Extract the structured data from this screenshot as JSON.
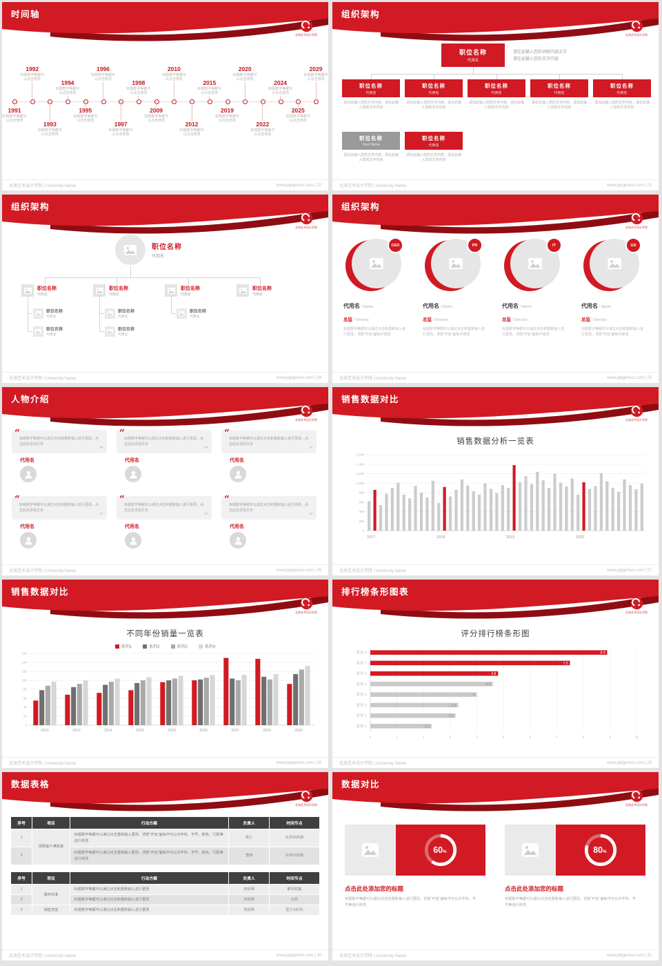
{
  "theme": {
    "red": "#d11a23",
    "dark_red": "#8f0d12"
  },
  "footer": {
    "left": "北海艺术设计学院 | University Name",
    "site": "www.pptgenius.com"
  },
  "logo": {
    "caption": "北海艺术设计学院"
  },
  "slides": {
    "timeline": {
      "title": "时间轴",
      "page": "22",
      "caption": [
        "标题数字等都可",
        "以点击修改"
      ],
      "top_years": [
        "1992",
        "1994",
        "1996",
        "1998",
        "2010",
        "2015",
        "2020",
        "2024",
        "2029"
      ],
      "bottom_years": [
        "1991",
        "1993",
        "1995",
        "1997",
        "2009",
        "2012",
        "2019",
        "2022",
        "2025"
      ]
    },
    "org_boxes": {
      "title": "组织架构",
      "page": "23",
      "root": {
        "name": "职位名称",
        "sub": "代用名"
      },
      "side_note": [
        "请在此输入您的词和内容文字",
        "请在此输入您的文字内容"
      ],
      "box_caption": "请在此输入您的文字内容，请在此输入您的文字内容",
      "row1": [
        {
          "name": "职位名称",
          "sub": "代用名"
        },
        {
          "name": "职位名称",
          "sub": "代用名"
        },
        {
          "name": "职位名称",
          "sub": "代用名"
        },
        {
          "name": "职位名称",
          "sub": "代用名"
        },
        {
          "name": "职位名称",
          "sub": "代用名"
        }
      ],
      "row2": [
        {
          "name": "职位名称",
          "sub": "Your Name",
          "gray": true
        },
        {
          "name": "职位名称",
          "sub": "代用名"
        }
      ]
    },
    "org_tree": {
      "title": "组织架构",
      "page": "24",
      "root": {
        "name": "职位名称",
        "sub": "代用名"
      },
      "children": [
        {
          "name": "职位名称",
          "sub": "代用名",
          "subs": [
            {
              "name": "职位名称",
              "sub": "代用名"
            },
            {
              "name": "职位名称",
              "sub": "代用名"
            }
          ]
        },
        {
          "name": "职位名称",
          "sub": "代用名",
          "subs": [
            {
              "name": "职位名称",
              "sub": "代用名"
            },
            {
              "name": "职位名称",
              "sub": "代用名"
            }
          ]
        },
        {
          "name": "职位名称",
          "sub": "代用名",
          "subs": [
            {
              "name": "职位名称",
              "sub": "代用名"
            }
          ]
        },
        {
          "name": "职位名称",
          "sub": "代用名",
          "subs": []
        }
      ]
    },
    "org_circles": {
      "title": "组织架构",
      "page": "25",
      "caption": "标题数字等都可以通过点击和重新输入进行更改，顶部“开始”面板中修改",
      "members": [
        {
          "badge": "CEO",
          "name": "代用名",
          "name_suffix": " / Name",
          "role": "总监",
          "role_suffix": " / Director"
        },
        {
          "badge": "PR",
          "name": "代用名",
          "name_suffix": " / Name",
          "role": "总监",
          "role_suffix": " / Director"
        },
        {
          "badge": "IT",
          "name": "代用名",
          "name_suffix": " / Name",
          "role": "总监",
          "role_suffix": " / Director"
        },
        {
          "badge": "GD",
          "name": "代用名",
          "name_suffix": " / Name",
          "role": "总监",
          "role_suffix": " / Director"
        }
      ]
    },
    "people": {
      "title": "人物介绍",
      "page": "26",
      "quote": "标题数字等都可以通过点击和重新输入进行更改，点击此处添加文本",
      "members": [
        {
          "name": "代用名"
        },
        {
          "name": "代用名"
        },
        {
          "name": "代用名"
        },
        {
          "name": "代用名"
        },
        {
          "name": "代用名"
        },
        {
          "name": "代用名"
        }
      ]
    },
    "sales_monthly": {
      "title": "销售数据对比",
      "page": "27"
    },
    "sales_yearly": {
      "title": "销售数据对比",
      "page": "28"
    },
    "ranking": {
      "title": "排行榜条形图表",
      "page": "29"
    },
    "tables": {
      "title": "数据表格",
      "page": "30",
      "headers": [
        "序号",
        "项目",
        "行动方案",
        "负责人",
        "时间节点"
      ],
      "table1": [
        {
          "no": "1",
          "project": "保障客户满意度",
          "rowspan": 2,
          "plan": "标题数字等都可以通过点击重新输入更改，顶部“开始”面板中可以对字体、字号、颜色、行距等进行修改",
          "owner": "张三",
          "time": "11月30日前"
        },
        {
          "no": "2",
          "plan": "标题数字等都可以通过点击重新输入更改，顶部“开始”面板中可以对字体、字号、颜色、行距等进行修改",
          "owner": "李四",
          "time": "11月15日前"
        }
      ],
      "table2": [
        {
          "no": "1",
          "project": "服务标准",
          "rowspan": 2,
          "plan": "标题数字等都可以通过点击和重新输入进行更改",
          "owner": "内训师",
          "time": "即日实施"
        },
        {
          "no": "2",
          "plan": "标题数字等都可以通过点击和重新输入进行更改",
          "owner": "内训师",
          "time": "11月"
        },
        {
          "no": "3",
          "project": "销售技能",
          "rowspan": 1,
          "plan": "标题数字等都可以通过点击和重新输入进行更改",
          "owner": "内训师",
          "time": "至少1次/月"
        }
      ]
    },
    "donuts": {
      "title": "数据对比",
      "page": "31",
      "items": [
        {
          "value": "60",
          "unit": "%",
          "percent": 60,
          "heading": "点击此处添加您的标题",
          "desc": "标题数字等都可以通过点击和重新输入进行更改，顶部“开始”面板中可以对字体、字号等进行修改"
        },
        {
          "value": "80",
          "unit": "%",
          "percent": 80,
          "heading": "点击此处添加您的标题",
          "desc": "标题数字等都可以通过点击和重新输入进行更改，顶部“开始”面板中可以对字体、字号等进行修改"
        }
      ]
    }
  },
  "chart_data": [
    {
      "type": "bar",
      "title": "销售数据分析一览表",
      "x_year_labels": [
        "2017",
        "2018",
        "2019",
        "2020"
      ],
      "year_label_indices": [
        0,
        12,
        24,
        36
      ],
      "values": [
        620,
        860,
        540,
        780,
        900,
        1010,
        760,
        680,
        940,
        800,
        700,
        1050,
        580,
        920,
        720,
        860,
        1080,
        950,
        830,
        760,
        1000,
        880,
        790,
        960,
        900,
        1380,
        1020,
        1150,
        980,
        1240,
        1060,
        900,
        1200,
        1010,
        930,
        1100,
        760,
        1020,
        880,
        940,
        1210,
        1040,
        900,
        820,
        1080,
        960,
        870,
        990
      ],
      "highlight_indices": [
        1,
        13,
        25,
        37
      ],
      "ylim": [
        0,
        1600
      ],
      "yticks": [
        "0",
        "200",
        "400",
        "600",
        "800",
        "1,000",
        "1,200",
        "1,400",
        "1,600"
      ],
      "bar_color": "#cccccc",
      "highlight_color": "#d11a23"
    },
    {
      "type": "bar",
      "title": "不同年份销量一览表",
      "categories": [
        "2010",
        "2012",
        "2014",
        "2016",
        "2018",
        "2020",
        "2022",
        "2024",
        "2026"
      ],
      "series": [
        {
          "name": "系列1",
          "color": "#d11a23",
          "values": [
            55,
            68,
            72,
            78,
            96,
            100,
            150,
            148,
            92
          ]
        },
        {
          "name": "系列2",
          "color": "#6f6f6f",
          "values": [
            78,
            85,
            90,
            94,
            100,
            102,
            104,
            108,
            114
          ]
        },
        {
          "name": "系列3",
          "color": "#a9a9a9",
          "values": [
            88,
            92,
            97,
            100,
            104,
            106,
            100,
            102,
            124
          ]
        },
        {
          "name": "系列4",
          "color": "#d6d6d6",
          "values": [
            97,
            100,
            104,
            107,
            110,
            112,
            112,
            114,
            132
          ]
        }
      ],
      "ylim": [
        0,
        160
      ],
      "yticks": [
        "0",
        "20",
        "40",
        "60",
        "80",
        "100",
        "120",
        "140",
        "160"
      ]
    },
    {
      "type": "bar-horizontal",
      "title": "评分排行榜条形图",
      "categories": [
        "系列 8",
        "系列 7",
        "系列 6",
        "系列 5",
        "系列 4",
        "系列 3",
        "系列 2",
        "系列 1"
      ],
      "values": [
        8.9,
        7.5,
        4.8,
        4.6,
        4,
        3.3,
        3.2,
        2.3
      ],
      "labels": [
        "8.9",
        "7.5",
        "4.8",
        "4.6",
        "4",
        "3.3",
        "3.2",
        "2.3"
      ],
      "highlight_count": 3,
      "bar_color": "#c9c9c9",
      "highlight_color": "#d11a23",
      "xlim": [
        0,
        10
      ],
      "xticks": [
        "0",
        "1",
        "2",
        "3",
        "4",
        "5",
        "6",
        "7",
        "8",
        "9",
        "10"
      ]
    },
    {
      "type": "donut",
      "items": [
        {
          "label": "60%",
          "percent": 60
        },
        {
          "label": "80%",
          "percent": 80
        }
      ]
    }
  ]
}
